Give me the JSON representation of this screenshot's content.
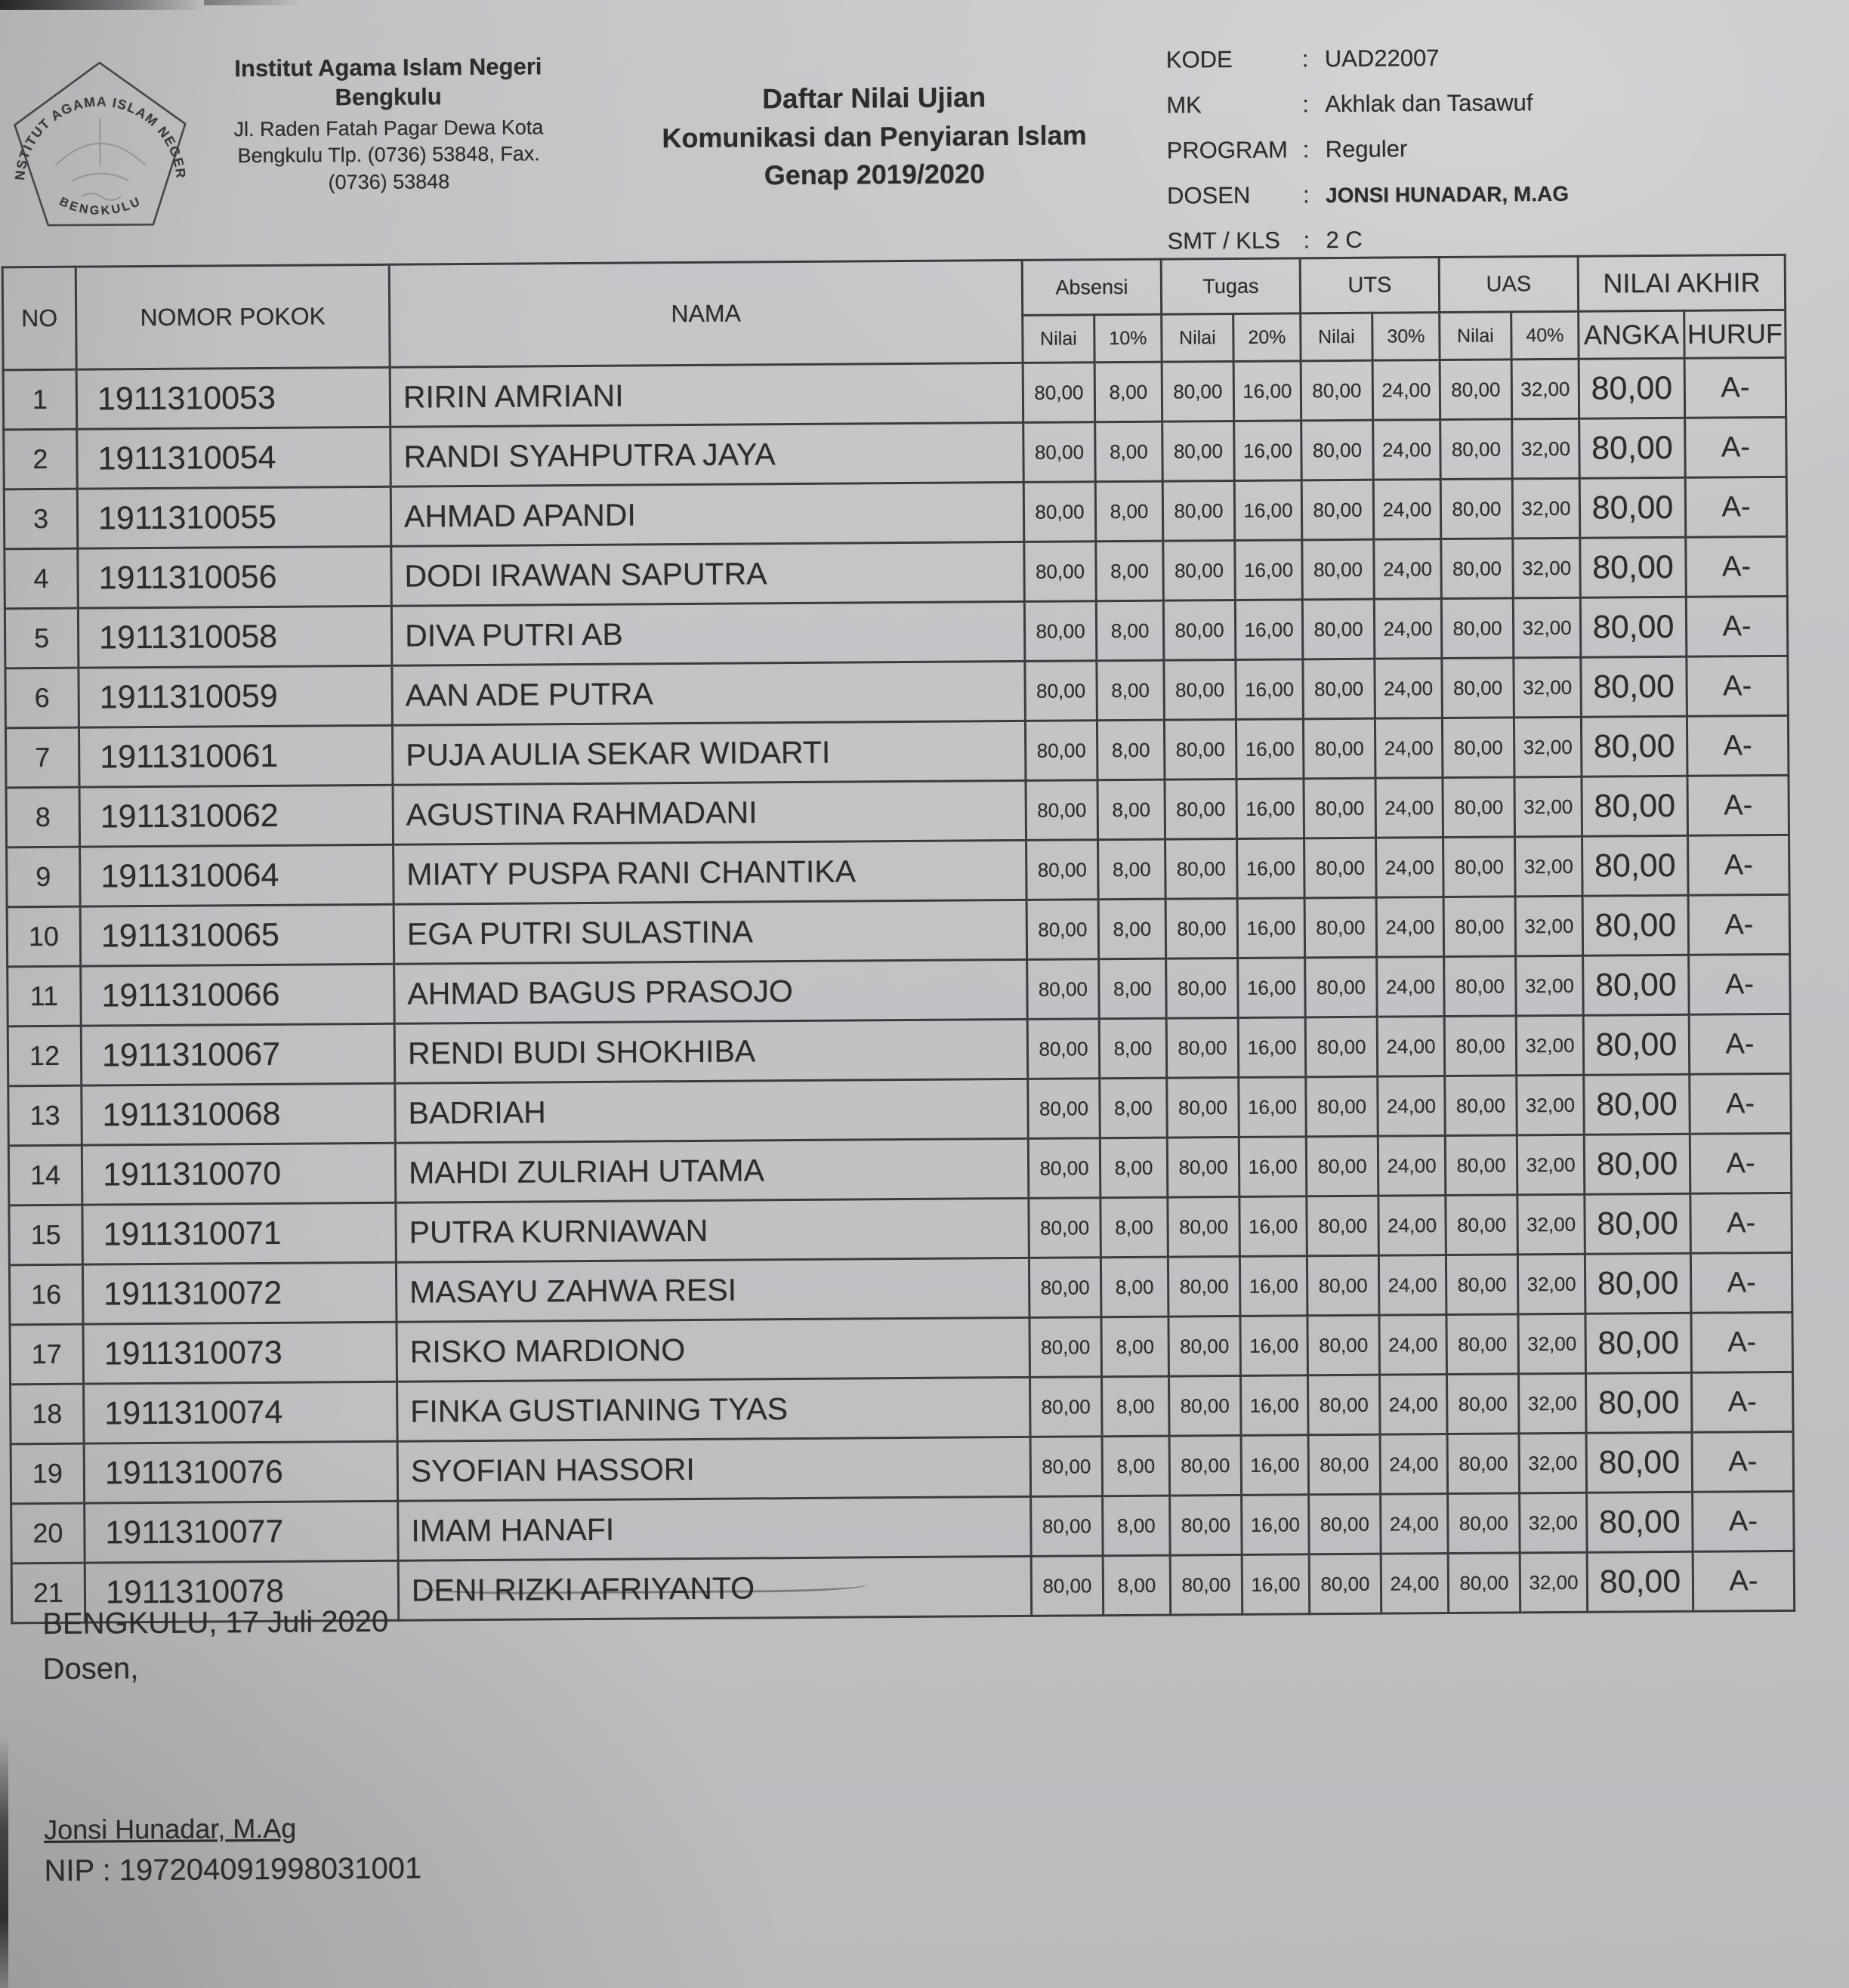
{
  "institution": {
    "logo_top_text": "INSTITUT AGAMA ISLAM NEGERI",
    "logo_bottom_text": "BENGKULU",
    "name_line1": "Institut Agama Islam Negeri",
    "name_line2": "Bengkulu",
    "address_line1": "Jl. Raden Fatah Pagar Dewa Kota",
    "address_line2": "Bengkulu Tlp. (0736) 53848, Fax.",
    "address_line3": "(0736) 53848"
  },
  "title": {
    "line1": "Daftar Nilai Ujian",
    "line2": "Komunikasi dan Penyiaran Islam",
    "line3": "Genap 2019/2020"
  },
  "meta": {
    "rows": [
      {
        "label": "KODE",
        "separator": ":",
        "value": "UAD22007"
      },
      {
        "label": "MK",
        "separator": ":",
        "value": "Akhlak dan Tasawuf"
      },
      {
        "label": "PROGRAM",
        "separator": ":",
        "value": "Reguler"
      },
      {
        "label": "DOSEN",
        "separator": ":",
        "value": "JONSI HUNADAR, M.AG"
      },
      {
        "label": "SMT / KLS",
        "separator": ":",
        "value": "2 C"
      }
    ]
  },
  "table": {
    "headers": {
      "no": "NO",
      "nomor_pokok": "NOMOR POKOK",
      "nama": "NAMA",
      "absensi": "Absensi",
      "tugas": "Tugas",
      "uts": "UTS",
      "uas": "UAS",
      "nilai_akhir": "NILAI AKHIR",
      "nilai": "Nilai",
      "absensi_pct": "10%",
      "tugas_pct": "20%",
      "uts_pct": "30%",
      "uas_pct": "40%",
      "angka": "ANGKA",
      "huruf": "HURUF"
    },
    "rows": [
      {
        "no": "1",
        "nomor_pokok": "1911310053",
        "nama": "RIRIN AMRIANI",
        "scores": [
          "80,00",
          "8,00",
          "80,00",
          "16,00",
          "80,00",
          "24,00",
          "80,00",
          "32,00",
          "80,00",
          "A-"
        ]
      },
      {
        "no": "2",
        "nomor_pokok": "1911310054",
        "nama": "RANDI SYAHPUTRA JAYA",
        "scores": [
          "80,00",
          "8,00",
          "80,00",
          "16,00",
          "80,00",
          "24,00",
          "80,00",
          "32,00",
          "80,00",
          "A-"
        ]
      },
      {
        "no": "3",
        "nomor_pokok": "1911310055",
        "nama": "AHMAD APANDI",
        "scores": [
          "80,00",
          "8,00",
          "80,00",
          "16,00",
          "80,00",
          "24,00",
          "80,00",
          "32,00",
          "80,00",
          "A-"
        ]
      },
      {
        "no": "4",
        "nomor_pokok": "1911310056",
        "nama": "DODI IRAWAN SAPUTRA",
        "scores": [
          "80,00",
          "8,00",
          "80,00",
          "16,00",
          "80,00",
          "24,00",
          "80,00",
          "32,00",
          "80,00",
          "A-"
        ]
      },
      {
        "no": "5",
        "nomor_pokok": "1911310058",
        "nama": "DIVA PUTRI AB",
        "scores": [
          "80,00",
          "8,00",
          "80,00",
          "16,00",
          "80,00",
          "24,00",
          "80,00",
          "32,00",
          "80,00",
          "A-"
        ]
      },
      {
        "no": "6",
        "nomor_pokok": "1911310059",
        "nama": "AAN ADE PUTRA",
        "scores": [
          "80,00",
          "8,00",
          "80,00",
          "16,00",
          "80,00",
          "24,00",
          "80,00",
          "32,00",
          "80,00",
          "A-"
        ]
      },
      {
        "no": "7",
        "nomor_pokok": "1911310061",
        "nama": "PUJA AULIA SEKAR WIDARTI",
        "scores": [
          "80,00",
          "8,00",
          "80,00",
          "16,00",
          "80,00",
          "24,00",
          "80,00",
          "32,00",
          "80,00",
          "A-"
        ]
      },
      {
        "no": "8",
        "nomor_pokok": "1911310062",
        "nama": "AGUSTINA RAHMADANI",
        "scores": [
          "80,00",
          "8,00",
          "80,00",
          "16,00",
          "80,00",
          "24,00",
          "80,00",
          "32,00",
          "80,00",
          "A-"
        ]
      },
      {
        "no": "9",
        "nomor_pokok": "1911310064",
        "nama": "MIATY PUSPA RANI CHANTIKA",
        "scores": [
          "80,00",
          "8,00",
          "80,00",
          "16,00",
          "80,00",
          "24,00",
          "80,00",
          "32,00",
          "80,00",
          "A-"
        ]
      },
      {
        "no": "10",
        "nomor_pokok": "1911310065",
        "nama": "EGA PUTRI SULASTINA",
        "scores": [
          "80,00",
          "8,00",
          "80,00",
          "16,00",
          "80,00",
          "24,00",
          "80,00",
          "32,00",
          "80,00",
          "A-"
        ]
      },
      {
        "no": "11",
        "nomor_pokok": "1911310066",
        "nama": "AHMAD BAGUS PRASOJO",
        "scores": [
          "80,00",
          "8,00",
          "80,00",
          "16,00",
          "80,00",
          "24,00",
          "80,00",
          "32,00",
          "80,00",
          "A-"
        ]
      },
      {
        "no": "12",
        "nomor_pokok": "1911310067",
        "nama": "RENDI BUDI SHOKHIBA",
        "scores": [
          "80,00",
          "8,00",
          "80,00",
          "16,00",
          "80,00",
          "24,00",
          "80,00",
          "32,00",
          "80,00",
          "A-"
        ]
      },
      {
        "no": "13",
        "nomor_pokok": "1911310068",
        "nama": "BADRIAH",
        "scores": [
          "80,00",
          "8,00",
          "80,00",
          "16,00",
          "80,00",
          "24,00",
          "80,00",
          "32,00",
          "80,00",
          "A-"
        ]
      },
      {
        "no": "14",
        "nomor_pokok": "1911310070",
        "nama": "MAHDI ZULRIAH UTAMA",
        "scores": [
          "80,00",
          "8,00",
          "80,00",
          "16,00",
          "80,00",
          "24,00",
          "80,00",
          "32,00",
          "80,00",
          "A-"
        ]
      },
      {
        "no": "15",
        "nomor_pokok": "1911310071",
        "nama": "PUTRA KURNIAWAN",
        "scores": [
          "80,00",
          "8,00",
          "80,00",
          "16,00",
          "80,00",
          "24,00",
          "80,00",
          "32,00",
          "80,00",
          "A-"
        ]
      },
      {
        "no": "16",
        "nomor_pokok": "1911310072",
        "nama": "MASAYU ZAHWA RESI",
        "scores": [
          "80,00",
          "8,00",
          "80,00",
          "16,00",
          "80,00",
          "24,00",
          "80,00",
          "32,00",
          "80,00",
          "A-"
        ]
      },
      {
        "no": "17",
        "nomor_pokok": "1911310073",
        "nama": "RISKO MARDIONO",
        "scores": [
          "80,00",
          "8,00",
          "80,00",
          "16,00",
          "80,00",
          "24,00",
          "80,00",
          "32,00",
          "80,00",
          "A-"
        ]
      },
      {
        "no": "18",
        "nomor_pokok": "1911310074",
        "nama": "FINKA GUSTIANING TYAS",
        "scores": [
          "80,00",
          "8,00",
          "80,00",
          "16,00",
          "80,00",
          "24,00",
          "80,00",
          "32,00",
          "80,00",
          "A-"
        ]
      },
      {
        "no": "19",
        "nomor_pokok": "1911310076",
        "nama": "SYOFIAN HASSORI",
        "scores": [
          "80,00",
          "8,00",
          "80,00",
          "16,00",
          "80,00",
          "24,00",
          "80,00",
          "32,00",
          "80,00",
          "A-"
        ]
      },
      {
        "no": "20",
        "nomor_pokok": "1911310077",
        "nama": "IMAM HANAFI",
        "scores": [
          "80,00",
          "8,00",
          "80,00",
          "16,00",
          "80,00",
          "24,00",
          "80,00",
          "32,00",
          "80,00",
          "A-"
        ]
      },
      {
        "no": "21",
        "nomor_pokok": "1911310078",
        "nama": "DENI RIZKI AFRIYANTO",
        "scores": [
          "80,00",
          "8,00",
          "80,00",
          "16,00",
          "80,00",
          "24,00",
          "80,00",
          "32,00",
          "80,00",
          "A-"
        ]
      }
    ]
  },
  "footer": {
    "place_date": "BENGKULU, 17 Juli 2020",
    "dosen_label": "Dosen,",
    "signature_name": "Jonsi Hunadar, M.Ag",
    "nip": "NIP : 197204091998031001"
  }
}
